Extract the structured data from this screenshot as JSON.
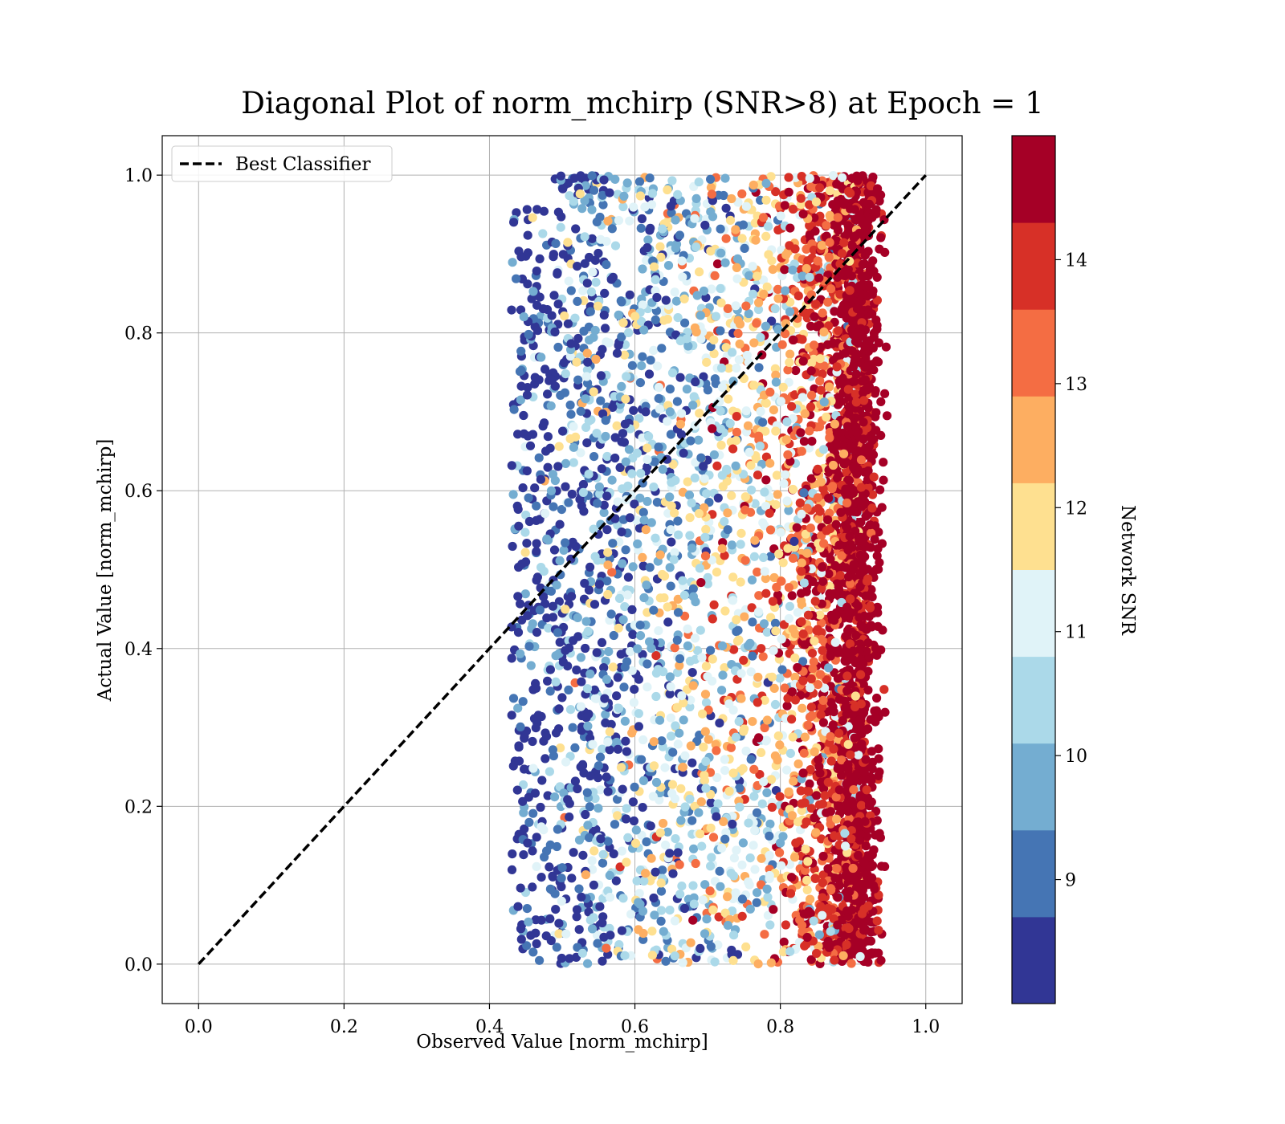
{
  "chart_data": {
    "type": "scatter",
    "title": "Diagonal Plot of norm_mchirp (SNR>8) at Epoch = 1",
    "xlabel": "Observed Value [norm_mchirp]",
    "ylabel": "Actual Value [norm_mchirp]",
    "xlim": [
      -0.05,
      1.05
    ],
    "ylim": [
      -0.05,
      1.05
    ],
    "x_ticks": [
      "0.0",
      "0.2",
      "0.4",
      "0.6",
      "0.8",
      "1.0"
    ],
    "y_ticks": [
      "0.0",
      "0.2",
      "0.4",
      "0.6",
      "0.8",
      "1.0"
    ],
    "grid": true,
    "legend_position": "top-left",
    "reference_line": {
      "name": "Best Classifier",
      "x": [
        0.0,
        1.0
      ],
      "y": [
        0.0,
        1.0
      ],
      "color": "#000000",
      "style": "dashed"
    },
    "scatter_summary": {
      "x_range": [
        0.4,
        0.95
      ],
      "y_range": [
        0.0,
        1.0
      ],
      "description_color_trend": "low SNR points concentrate at observed 0.42-0.75, high SNR (14+) points concentrate at observed 0.87-0.94"
    },
    "colorbar": {
      "label": "Network SNR",
      "range": [
        8,
        15
      ],
      "tick_labels": [
        "9",
        "10",
        "11",
        "12",
        "13",
        "14"
      ],
      "tick_values": [
        9,
        10,
        11,
        12,
        13,
        14
      ],
      "colors": [
        "#313695",
        "#4575b4",
        "#74add1",
        "#abd9e9",
        "#e0f3f8",
        "#fee090",
        "#fdae61",
        "#f46d43",
        "#d73027",
        "#a50026"
      ]
    }
  }
}
